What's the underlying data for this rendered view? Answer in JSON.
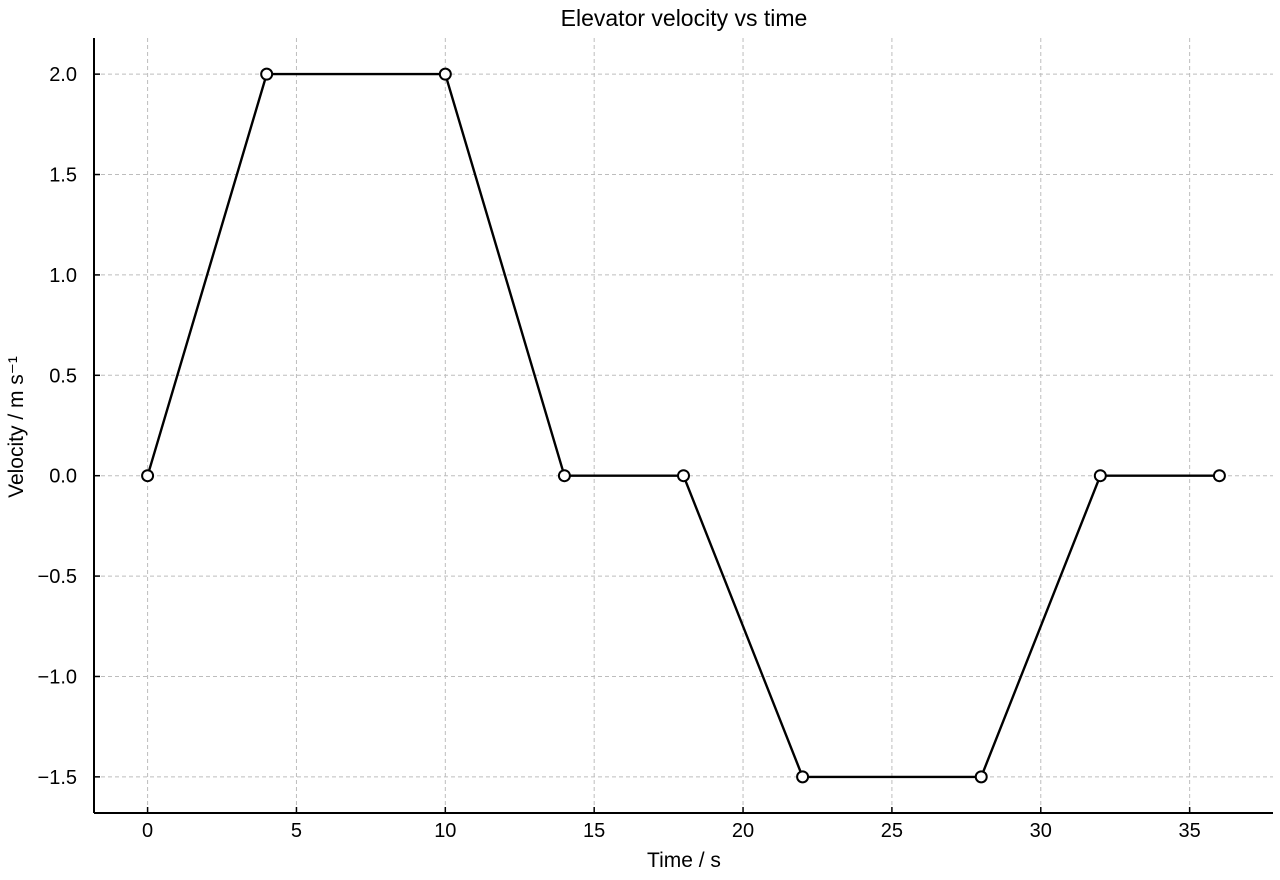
{
  "chart_data": {
    "type": "line",
    "title": "Elevator velocity vs time",
    "xlabel": "Time / s",
    "ylabel": "Velocity / m s⁻¹",
    "xlim": [
      -1.8,
      37.8
    ],
    "ylim": [
      -1.68,
      2.18
    ],
    "x_ticks": [
      0,
      5,
      10,
      15,
      20,
      25,
      30,
      35
    ],
    "x_tick_labels": [
      "0",
      "5",
      "10",
      "15",
      "20",
      "25",
      "30",
      "35"
    ],
    "y_ticks": [
      -1.5,
      -1.0,
      -0.5,
      0.0,
      0.5,
      1.0,
      1.5,
      2.0
    ],
    "y_tick_labels": [
      "−1.5",
      "−1.0",
      "−0.5",
      "0.0",
      "0.5",
      "1.0",
      "1.5",
      "2.0"
    ],
    "grid": true,
    "series": [
      {
        "x": [
          0,
          4,
          10,
          14,
          18,
          22,
          28,
          32,
          36
        ],
        "y": [
          0,
          2.0,
          2.0,
          0,
          0,
          -1.5,
          -1.5,
          0,
          0
        ],
        "color": "#000000",
        "marker": "open-circle"
      }
    ]
  }
}
